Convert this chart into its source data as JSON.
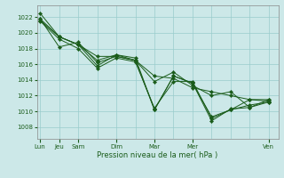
{
  "background_color": "#cce8e8",
  "grid_color": "#99cccc",
  "line_color": "#1a5c1a",
  "marker_color": "#1a5c1a",
  "xlabel": "Pression niveau de la mer( hPa )",
  "ylim": [
    1006.5,
    1023.5
  ],
  "yticks": [
    1008,
    1010,
    1012,
    1014,
    1016,
    1018,
    1020,
    1022
  ],
  "x_major_positions": [
    0,
    3,
    6,
    12,
    18,
    24,
    36
  ],
  "x_major_labels": [
    "Lun",
    "Jeu",
    "Sam",
    "Dim",
    "Mar",
    "Mer",
    "Ven"
  ],
  "x_minor_positions": [
    0,
    3,
    6,
    9,
    12,
    15,
    18,
    21,
    24,
    27,
    30,
    33,
    36
  ],
  "xlim": [
    -0.5,
    37.5
  ],
  "series": [
    {
      "x": [
        0,
        3,
        6,
        9,
        12,
        15,
        18,
        21,
        24,
        27,
        30,
        33,
        36
      ],
      "y": [
        1022.5,
        1019.5,
        1018.5,
        1017.0,
        1017.0,
        1016.5,
        1014.5,
        1014.2,
        1013.0,
        1012.5,
        1012.0,
        1011.5,
        1011.5
      ]
    },
    {
      "x": [
        0,
        3,
        6,
        9,
        12,
        15,
        18,
        21,
        24,
        27,
        30,
        33,
        36
      ],
      "y": [
        1021.8,
        1018.2,
        1018.8,
        1016.2,
        1017.0,
        1016.5,
        1013.8,
        1015.0,
        1013.3,
        1012.0,
        1012.5,
        1010.5,
        1011.5
      ]
    },
    {
      "x": [
        0,
        3,
        6,
        9,
        12,
        15,
        18,
        21,
        24,
        27,
        30,
        33,
        36
      ],
      "y": [
        1021.5,
        1019.2,
        1018.0,
        1015.5,
        1016.8,
        1016.3,
        1010.4,
        1013.8,
        1013.8,
        1009.1,
        1010.2,
        1011.5,
        1011.3
      ]
    },
    {
      "x": [
        0,
        3,
        6,
        9,
        12,
        15,
        18,
        21,
        24,
        27,
        30,
        33,
        36
      ],
      "y": [
        1021.8,
        1019.5,
        1018.5,
        1015.8,
        1017.2,
        1016.5,
        1010.2,
        1014.5,
        1013.6,
        1008.8,
        1010.3,
        1010.5,
        1011.2
      ]
    },
    {
      "x": [
        0,
        3,
        6,
        9,
        12,
        15,
        18,
        21,
        24,
        27,
        30,
        33,
        36
      ],
      "y": [
        1021.6,
        1019.5,
        1018.5,
        1016.5,
        1017.2,
        1016.8,
        1010.2,
        1014.5,
        1013.6,
        1009.3,
        1010.2,
        1010.8,
        1011.2
      ]
    }
  ]
}
